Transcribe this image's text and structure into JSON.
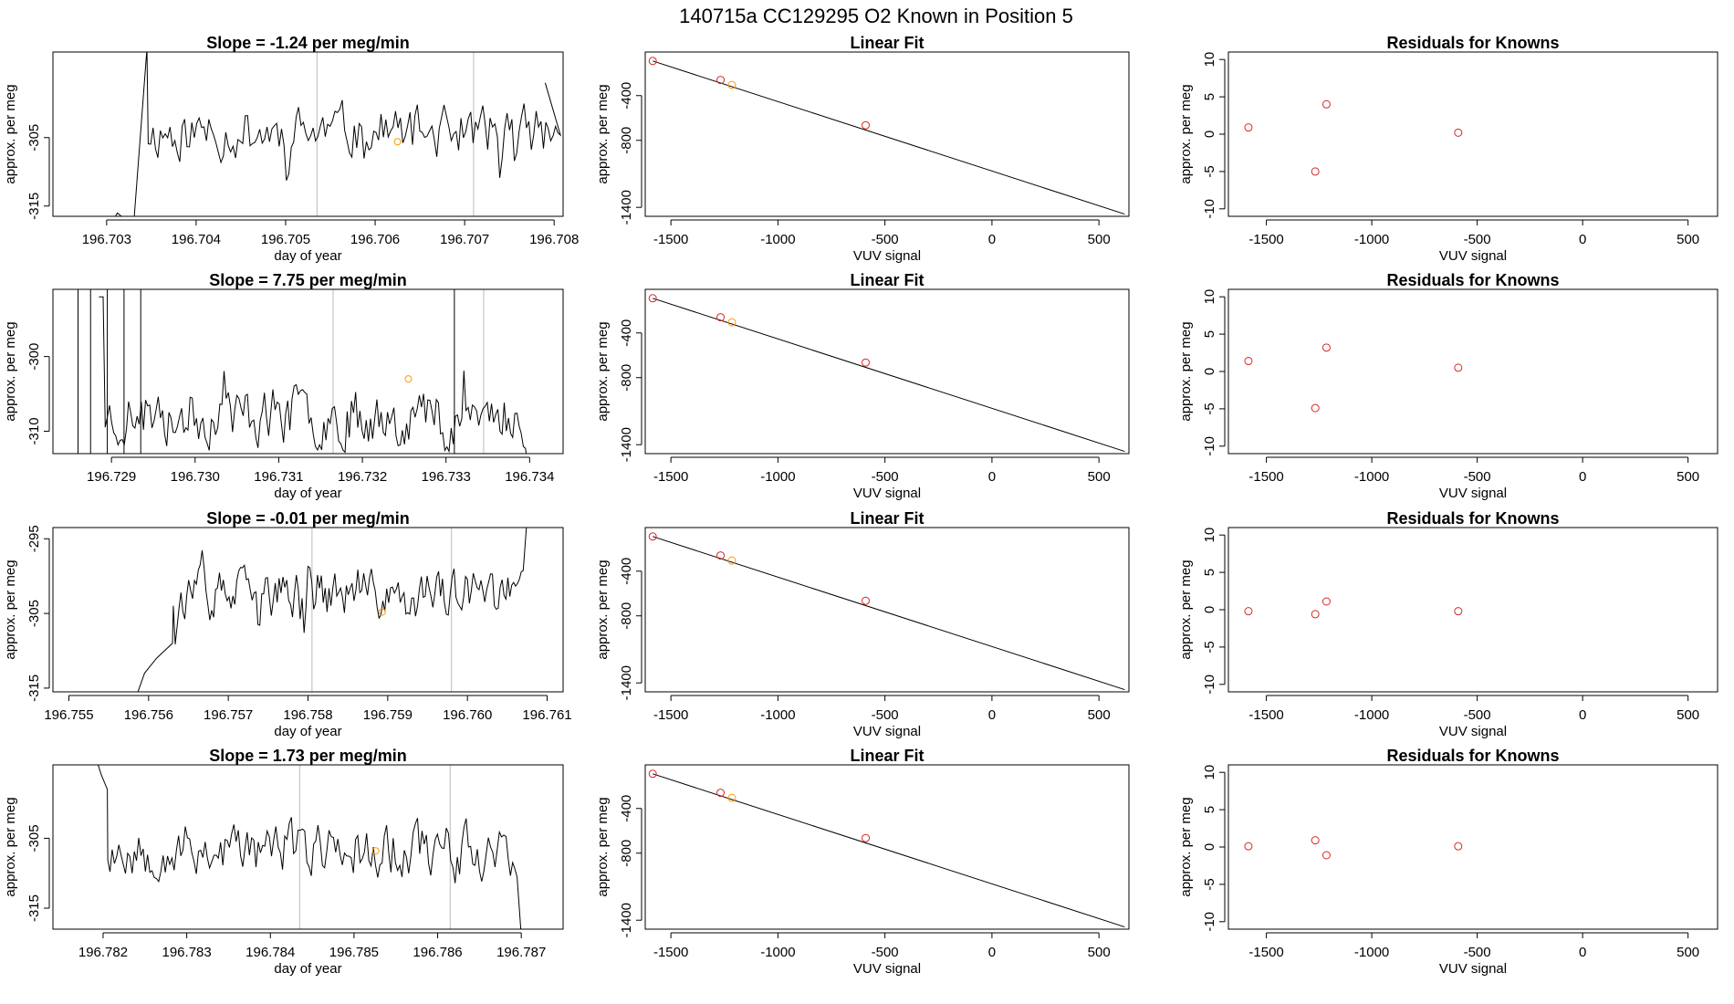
{
  "title": "140715a      CC129295    O2 Known in Position  5",
  "colors": {
    "line": "#000000",
    "known_point": "#d62728",
    "current_point": "#ff9900",
    "marker_line": "#bbbbbb"
  },
  "chart_data": [
    {
      "type": "line",
      "title": "Slope =  -1.24  per meg/min",
      "xlabel": "day of year",
      "ylabel": "approx. per meg",
      "xticks": [
        "196.703",
        "196.704",
        "196.705",
        "196.706",
        "196.707",
        "196.708"
      ],
      "yticks": [
        "-305",
        "-315"
      ],
      "xlim": [
        196.7024,
        196.7081
      ],
      "ylim": [
        -316.5,
        -292.5
      ],
      "seed": 11,
      "base": -304.2,
      "noise": 6,
      "n": 190,
      "x_start": 196.70295,
      "x_end": 196.70807,
      "lead": [
        [
          196.70295,
          -320
        ],
        [
          196.70312,
          -316
        ],
        [
          196.7033,
          -318
        ],
        [
          196.70345,
          -292
        ]
      ],
      "tail": [
        196.7079,
        -297
      ],
      "markers": [
        196.70535,
        196.7071
      ],
      "point": [
        196.70625,
        -305.6
      ]
    },
    {
      "type": "line",
      "title": "Slope =  7.75  per meg/min",
      "xlabel": "day of year",
      "ylabel": "approx. per meg",
      "xticks": [
        "196.729",
        "196.730",
        "196.731",
        "196.732",
        "196.733",
        "196.734"
      ],
      "yticks": [
        "-300",
        "-310"
      ],
      "xlim": [
        196.7283,
        196.7344
      ],
      "ylim": [
        -313.0,
        -291.0
      ],
      "seed": 23,
      "base": -307.8,
      "noise": 6,
      "n": 200,
      "x_start": 196.7289,
      "x_end": 196.73395,
      "lead": [
        [
          196.72885,
          -292
        ],
        [
          196.7289,
          -292
        ]
      ],
      "tail": [
        196.734,
        -316
      ],
      "markers": [
        196.73165,
        196.73345
      ],
      "point": [
        196.73255,
        -303.0
      ],
      "extra_vlines": [
        196.7286,
        196.72875,
        196.72895,
        196.72915,
        196.72935,
        196.7331
      ]
    },
    {
      "type": "line",
      "title": "Slope =  -0.01  per meg/min",
      "xlabel": "day of year",
      "ylabel": "approx. per meg",
      "xticks": [
        "196.755",
        "196.756",
        "196.757",
        "196.758",
        "196.759",
        "196.760",
        "196.761"
      ],
      "yticks": [
        "-295",
        "-305",
        "-315"
      ],
      "xlim": [
        196.7548,
        196.7612
      ],
      "ylim": [
        -315.5,
        -293.5
      ],
      "seed": 37,
      "base": -302.6,
      "noise": 5,
      "n": 200,
      "x_start": 196.7559,
      "x_end": 196.7607,
      "lead": [
        [
          196.75585,
          -316
        ],
        [
          196.75595,
          -313
        ],
        [
          196.7561,
          -311
        ],
        [
          196.7563,
          -309
        ]
      ],
      "tail": [
        196.76075,
        -292
      ],
      "markers": [
        196.75805,
        196.7598
      ],
      "point": [
        196.75893,
        -304.8
      ]
    },
    {
      "type": "line",
      "title": "Slope =  1.73  per meg/min",
      "xlabel": "day of year",
      "ylabel": "approx. per meg",
      "xticks": [
        "196.782",
        "196.783",
        "196.784",
        "196.785",
        "196.786",
        "196.787"
      ],
      "yticks": [
        "-305",
        "-315"
      ],
      "xlim": [
        196.7814,
        196.7875
      ],
      "ylim": [
        -318.0,
        -294.5
      ],
      "seed": 53,
      "base": -306.5,
      "noise": 6,
      "n": 190,
      "x_start": 196.78195,
      "x_end": 196.78695,
      "lead": [
        [
          196.7819,
          -293
        ],
        [
          196.78198,
          -296
        ],
        [
          196.78205,
          -298
        ]
      ],
      "tail": [
        196.787,
        -319
      ],
      "markers": [
        196.78435,
        196.78615
      ],
      "point": [
        196.78526,
        -306.8
      ]
    }
  ],
  "fit_chart": {
    "type": "scatter",
    "title": "Linear Fit",
    "xlabel": "VUV signal",
    "ylabel": "approx. per meg",
    "xticks": [
      "-1500",
      "-1000",
      "-500",
      "0",
      "500"
    ],
    "yticks": [
      "-400",
      "-800",
      "-1400"
    ],
    "xlim": [
      -1620,
      640
    ],
    "ylim": [
      -1480,
      -10
    ],
    "points_x": [
      -1585,
      -1268,
      -1215,
      -590
    ],
    "points_y": [
      -90,
      -260,
      -305,
      -665
    ],
    "highlight_index": 2,
    "line": [
      [
        -1585,
        -90
      ],
      [
        620,
        -1460
      ]
    ]
  },
  "residual_chart": {
    "type": "scatter",
    "title": "Residuals for Knowns",
    "xlabel": "VUV signal",
    "ylabel": "approx. per meg",
    "xticks": [
      "-1500",
      "-1000",
      "-500",
      "0",
      "500"
    ],
    "yticks": [
      "10",
      "5",
      "0",
      "-5",
      "-10"
    ],
    "xlim": [
      -1680,
      640
    ],
    "ylim": [
      -11,
      11
    ],
    "points_x": [
      -1585,
      -1268,
      -1215,
      -590
    ],
    "rows": [
      [
        0.9,
        -5.0,
        4.0,
        0.2
      ],
      [
        1.4,
        -4.9,
        3.2,
        0.5
      ],
      [
        -0.2,
        -0.6,
        1.1,
        -0.2
      ],
      [
        0.1,
        0.9,
        -1.1,
        0.1
      ]
    ]
  }
}
